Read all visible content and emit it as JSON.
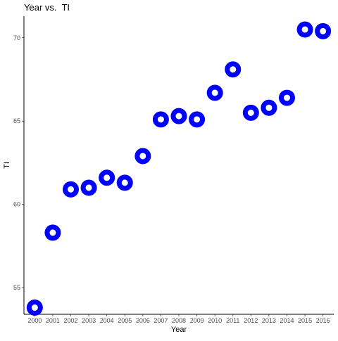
{
  "chart_data": {
    "type": "scatter",
    "title": "Year vs.  TI",
    "xlabel": "Year",
    "ylabel": "TI",
    "x": [
      2000,
      2001,
      2002,
      2003,
      2004,
      2005,
      2006,
      2007,
      2008,
      2009,
      2010,
      2011,
      2012,
      2013,
      2014,
      2015,
      2016
    ],
    "y": [
      53.8,
      58.3,
      60.9,
      61.0,
      61.6,
      61.3,
      62.9,
      65.1,
      65.3,
      65.1,
      66.7,
      68.1,
      65.5,
      65.8,
      66.4,
      70.5,
      70.4
    ],
    "x_ticks": [
      "2000",
      "2001",
      "2002",
      "2003",
      "2004",
      "2005",
      "2006",
      "2007",
      "2008",
      "2009",
      "2010",
      "2011",
      "2012",
      "2013",
      "2014",
      "2015",
      "2016"
    ],
    "y_ticks": [
      "55",
      "60",
      "65",
      "70"
    ],
    "xlim": [
      1999.4,
      2016.6
    ],
    "ylim": [
      53.4,
      71.3
    ],
    "grid": false,
    "legend": "none",
    "marker_color": "#0000ff",
    "marker_fill": "#ffffff"
  }
}
